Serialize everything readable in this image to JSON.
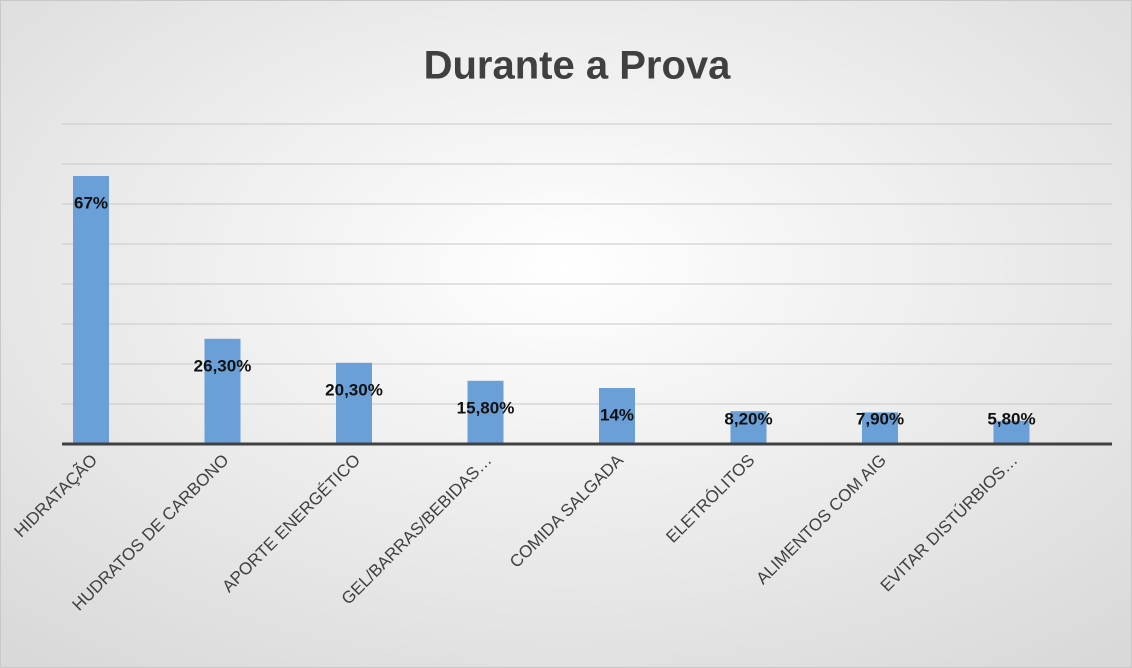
{
  "chart_data": {
    "type": "bar",
    "title": "Durante a Prova",
    "categories": [
      "HIDRATAÇÃO",
      "HUDRATOS DE CARBONO",
      "APORTE ENERGÉTICO",
      "GEL/BARRAS/BEBIDAS…",
      "COMIDA SALGADA",
      "ELETRÓLITOS",
      "ALIMENTOS COM AIG",
      "EVITAR DISTÚRBIOS…"
    ],
    "values": [
      67,
      26.3,
      20.3,
      15.8,
      14,
      8.2,
      7.9,
      5.8
    ],
    "value_labels": [
      "67%",
      "26,30%",
      "20,30%",
      "15,80%",
      "14%",
      "8,20%",
      "7,90%",
      "5,80%"
    ],
    "color": "#6a9fd8",
    "ylim": [
      0,
      80
    ],
    "yticks": [
      0,
      10,
      20,
      30,
      40,
      50,
      60,
      70,
      80
    ],
    "grid": true
  }
}
